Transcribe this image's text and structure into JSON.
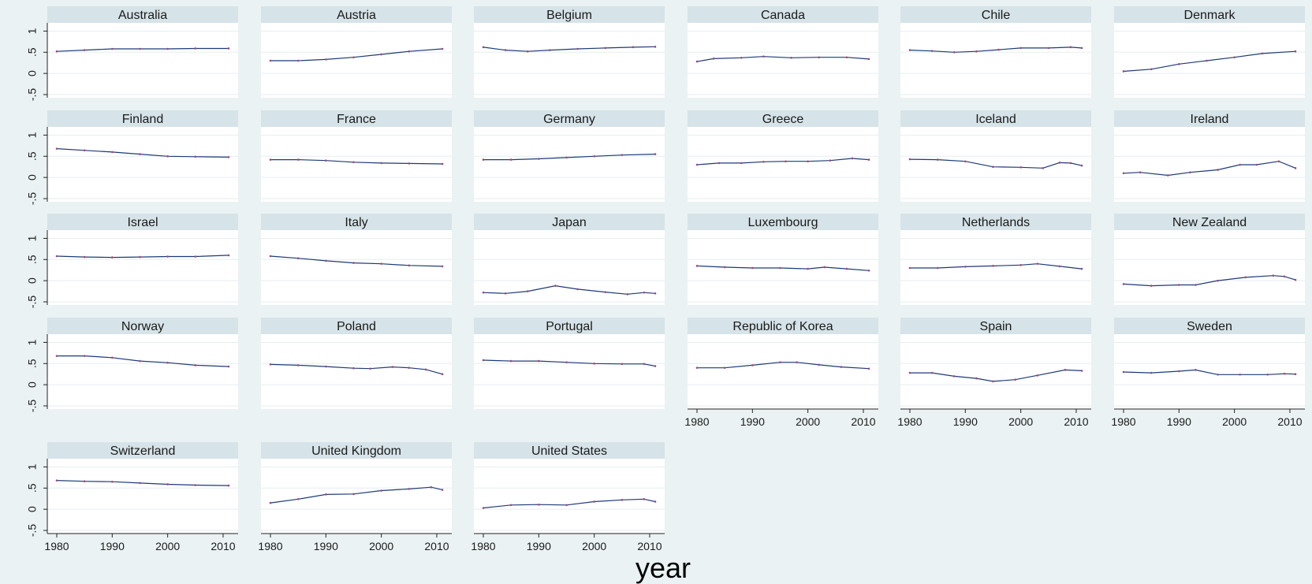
{
  "chart_data": {
    "type": "line",
    "layout": "small-multiples",
    "xlabel": "year",
    "ylabel": "",
    "xlim": [
      1980,
      2011
    ],
    "ylim": [
      -0.5,
      1
    ],
    "x_ticks": [
      "1980",
      "1990",
      "2000",
      "2010"
    ],
    "y_ticks": [
      "-.5",
      "0",
      ".5",
      "1"
    ],
    "grid": true,
    "colors": {
      "background": "#eaf2f3",
      "plot": "#ffffff",
      "header": "#d6e3e8",
      "line": "#1b3a78",
      "marker": "#9a4a78",
      "grid": "#e6eef0"
    },
    "panels": [
      {
        "title": "Australia",
        "points": [
          [
            1980,
            0.52
          ],
          [
            1985,
            0.55
          ],
          [
            1990,
            0.58
          ],
          [
            1995,
            0.58
          ],
          [
            2000,
            0.58
          ],
          [
            2005,
            0.59
          ],
          [
            2011,
            0.59
          ]
        ]
      },
      {
        "title": "Austria",
        "points": [
          [
            1980,
            0.3
          ],
          [
            1985,
            0.3
          ],
          [
            1990,
            0.33
          ],
          [
            1995,
            0.38
          ],
          [
            2000,
            0.45
          ],
          [
            2005,
            0.52
          ],
          [
            2011,
            0.58
          ]
        ]
      },
      {
        "title": "Belgium",
        "points": [
          [
            1980,
            0.62
          ],
          [
            1984,
            0.55
          ],
          [
            1988,
            0.52
          ],
          [
            1992,
            0.55
          ],
          [
            1997,
            0.58
          ],
          [
            2002,
            0.6
          ],
          [
            2007,
            0.62
          ],
          [
            2011,
            0.63
          ]
        ]
      },
      {
        "title": "Canada",
        "points": [
          [
            1980,
            0.28
          ],
          [
            1983,
            0.35
          ],
          [
            1988,
            0.37
          ],
          [
            1992,
            0.4
          ],
          [
            1997,
            0.37
          ],
          [
            2002,
            0.38
          ],
          [
            2007,
            0.38
          ],
          [
            2011,
            0.34
          ]
        ]
      },
      {
        "title": "Chile",
        "points": [
          [
            1980,
            0.55
          ],
          [
            1984,
            0.53
          ],
          [
            1988,
            0.5
          ],
          [
            1992,
            0.52
          ],
          [
            1996,
            0.56
          ],
          [
            2000,
            0.6
          ],
          [
            2005,
            0.6
          ],
          [
            2009,
            0.62
          ],
          [
            2011,
            0.6
          ]
        ]
      },
      {
        "title": "Denmark",
        "points": [
          [
            1980,
            0.05
          ],
          [
            1985,
            0.1
          ],
          [
            1990,
            0.22
          ],
          [
            1995,
            0.3
          ],
          [
            2000,
            0.38
          ],
          [
            2005,
            0.47
          ],
          [
            2011,
            0.52
          ]
        ]
      },
      {
        "title": "Finland",
        "points": [
          [
            1980,
            0.68
          ],
          [
            1985,
            0.64
          ],
          [
            1990,
            0.6
          ],
          [
            1995,
            0.55
          ],
          [
            2000,
            0.5
          ],
          [
            2005,
            0.49
          ],
          [
            2011,
            0.48
          ]
        ]
      },
      {
        "title": "France",
        "points": [
          [
            1980,
            0.42
          ],
          [
            1985,
            0.42
          ],
          [
            1990,
            0.4
          ],
          [
            1995,
            0.36
          ],
          [
            2000,
            0.34
          ],
          [
            2005,
            0.33
          ],
          [
            2011,
            0.32
          ]
        ]
      },
      {
        "title": "Germany",
        "points": [
          [
            1980,
            0.42
          ],
          [
            1985,
            0.42
          ],
          [
            1990,
            0.44
          ],
          [
            1995,
            0.47
          ],
          [
            2000,
            0.5
          ],
          [
            2005,
            0.53
          ],
          [
            2011,
            0.55
          ]
        ]
      },
      {
        "title": "Greece",
        "points": [
          [
            1980,
            0.3
          ],
          [
            1984,
            0.34
          ],
          [
            1988,
            0.34
          ],
          [
            1992,
            0.37
          ],
          [
            1996,
            0.38
          ],
          [
            2000,
            0.38
          ],
          [
            2004,
            0.4
          ],
          [
            2008,
            0.45
          ],
          [
            2011,
            0.42
          ]
        ]
      },
      {
        "title": "Iceland",
        "points": [
          [
            1980,
            0.43
          ],
          [
            1985,
            0.42
          ],
          [
            1990,
            0.38
          ],
          [
            1995,
            0.25
          ],
          [
            2000,
            0.24
          ],
          [
            2004,
            0.22
          ],
          [
            2007,
            0.35
          ],
          [
            2009,
            0.34
          ],
          [
            2011,
            0.28
          ]
        ]
      },
      {
        "title": "Ireland",
        "points": [
          [
            1980,
            0.1
          ],
          [
            1983,
            0.12
          ],
          [
            1988,
            0.05
          ],
          [
            1992,
            0.12
          ],
          [
            1997,
            0.18
          ],
          [
            2001,
            0.3
          ],
          [
            2004,
            0.3
          ],
          [
            2008,
            0.38
          ],
          [
            2011,
            0.22
          ]
        ]
      },
      {
        "title": "Israel",
        "points": [
          [
            1980,
            0.58
          ],
          [
            1985,
            0.56
          ],
          [
            1990,
            0.55
          ],
          [
            1995,
            0.56
          ],
          [
            2000,
            0.57
          ],
          [
            2005,
            0.57
          ],
          [
            2011,
            0.6
          ]
        ]
      },
      {
        "title": "Italy",
        "points": [
          [
            1980,
            0.58
          ],
          [
            1985,
            0.53
          ],
          [
            1990,
            0.47
          ],
          [
            1995,
            0.42
          ],
          [
            2000,
            0.4
          ],
          [
            2005,
            0.36
          ],
          [
            2011,
            0.34
          ]
        ]
      },
      {
        "title": "Japan",
        "points": [
          [
            1980,
            -0.28
          ],
          [
            1984,
            -0.3
          ],
          [
            1988,
            -0.25
          ],
          [
            1993,
            -0.12
          ],
          [
            1997,
            -0.2
          ],
          [
            2002,
            -0.27
          ],
          [
            2006,
            -0.32
          ],
          [
            2009,
            -0.28
          ],
          [
            2011,
            -0.3
          ]
        ]
      },
      {
        "title": "Luxembourg",
        "points": [
          [
            1980,
            0.35
          ],
          [
            1985,
            0.32
          ],
          [
            1990,
            0.3
          ],
          [
            1995,
            0.3
          ],
          [
            2000,
            0.28
          ],
          [
            2003,
            0.32
          ],
          [
            2007,
            0.28
          ],
          [
            2011,
            0.24
          ]
        ]
      },
      {
        "title": "Netherlands",
        "points": [
          [
            1980,
            0.3
          ],
          [
            1985,
            0.3
          ],
          [
            1990,
            0.33
          ],
          [
            1995,
            0.35
          ],
          [
            2000,
            0.37
          ],
          [
            2003,
            0.4
          ],
          [
            2007,
            0.34
          ],
          [
            2011,
            0.28
          ]
        ]
      },
      {
        "title": "New Zealand",
        "points": [
          [
            1980,
            -0.08
          ],
          [
            1985,
            -0.12
          ],
          [
            1990,
            -0.1
          ],
          [
            1993,
            -0.1
          ],
          [
            1997,
            0.0
          ],
          [
            2002,
            0.08
          ],
          [
            2007,
            0.12
          ],
          [
            2009,
            0.1
          ],
          [
            2011,
            0.02
          ]
        ]
      },
      {
        "title": "Norway",
        "points": [
          [
            1980,
            0.68
          ],
          [
            1985,
            0.68
          ],
          [
            1990,
            0.64
          ],
          [
            1995,
            0.56
          ],
          [
            2000,
            0.52
          ],
          [
            2005,
            0.46
          ],
          [
            2011,
            0.43
          ]
        ]
      },
      {
        "title": "Poland",
        "points": [
          [
            1980,
            0.48
          ],
          [
            1985,
            0.46
          ],
          [
            1990,
            0.43
          ],
          [
            1995,
            0.39
          ],
          [
            1998,
            0.38
          ],
          [
            2002,
            0.42
          ],
          [
            2005,
            0.4
          ],
          [
            2008,
            0.36
          ],
          [
            2011,
            0.25
          ]
        ]
      },
      {
        "title": "Portugal",
        "points": [
          [
            1980,
            0.58
          ],
          [
            1985,
            0.56
          ],
          [
            1990,
            0.56
          ],
          [
            1995,
            0.53
          ],
          [
            2000,
            0.5
          ],
          [
            2005,
            0.49
          ],
          [
            2009,
            0.49
          ],
          [
            2011,
            0.44
          ]
        ]
      },
      {
        "title": "Republic of Korea",
        "points": [
          [
            1980,
            0.4
          ],
          [
            1985,
            0.4
          ],
          [
            1990,
            0.46
          ],
          [
            1995,
            0.53
          ],
          [
            1998,
            0.53
          ],
          [
            2002,
            0.47
          ],
          [
            2006,
            0.42
          ],
          [
            2011,
            0.38
          ]
        ]
      },
      {
        "title": "Spain",
        "points": [
          [
            1980,
            0.28
          ],
          [
            1984,
            0.28
          ],
          [
            1988,
            0.2
          ],
          [
            1992,
            0.15
          ],
          [
            1995,
            0.08
          ],
          [
            1999,
            0.12
          ],
          [
            2003,
            0.22
          ],
          [
            2008,
            0.35
          ],
          [
            2011,
            0.33
          ]
        ]
      },
      {
        "title": "Sweden",
        "points": [
          [
            1980,
            0.3
          ],
          [
            1985,
            0.28
          ],
          [
            1990,
            0.32
          ],
          [
            1993,
            0.35
          ],
          [
            1997,
            0.24
          ],
          [
            2001,
            0.24
          ],
          [
            2006,
            0.24
          ],
          [
            2009,
            0.26
          ],
          [
            2011,
            0.25
          ]
        ]
      },
      {
        "title": "Switzerland",
        "points": [
          [
            1980,
            0.68
          ],
          [
            1985,
            0.66
          ],
          [
            1990,
            0.65
          ],
          [
            1995,
            0.62
          ],
          [
            2000,
            0.59
          ],
          [
            2005,
            0.57
          ],
          [
            2011,
            0.56
          ]
        ]
      },
      {
        "title": "United Kingdom",
        "points": [
          [
            1980,
            0.15
          ],
          [
            1985,
            0.24
          ],
          [
            1990,
            0.35
          ],
          [
            1995,
            0.36
          ],
          [
            2000,
            0.44
          ],
          [
            2005,
            0.48
          ],
          [
            2009,
            0.52
          ],
          [
            2011,
            0.46
          ]
        ]
      },
      {
        "title": "United States",
        "points": [
          [
            1980,
            0.03
          ],
          [
            1985,
            0.1
          ],
          [
            1990,
            0.11
          ],
          [
            1995,
            0.1
          ],
          [
            2000,
            0.18
          ],
          [
            2005,
            0.22
          ],
          [
            2009,
            0.24
          ],
          [
            2011,
            0.18
          ]
        ]
      }
    ]
  }
}
